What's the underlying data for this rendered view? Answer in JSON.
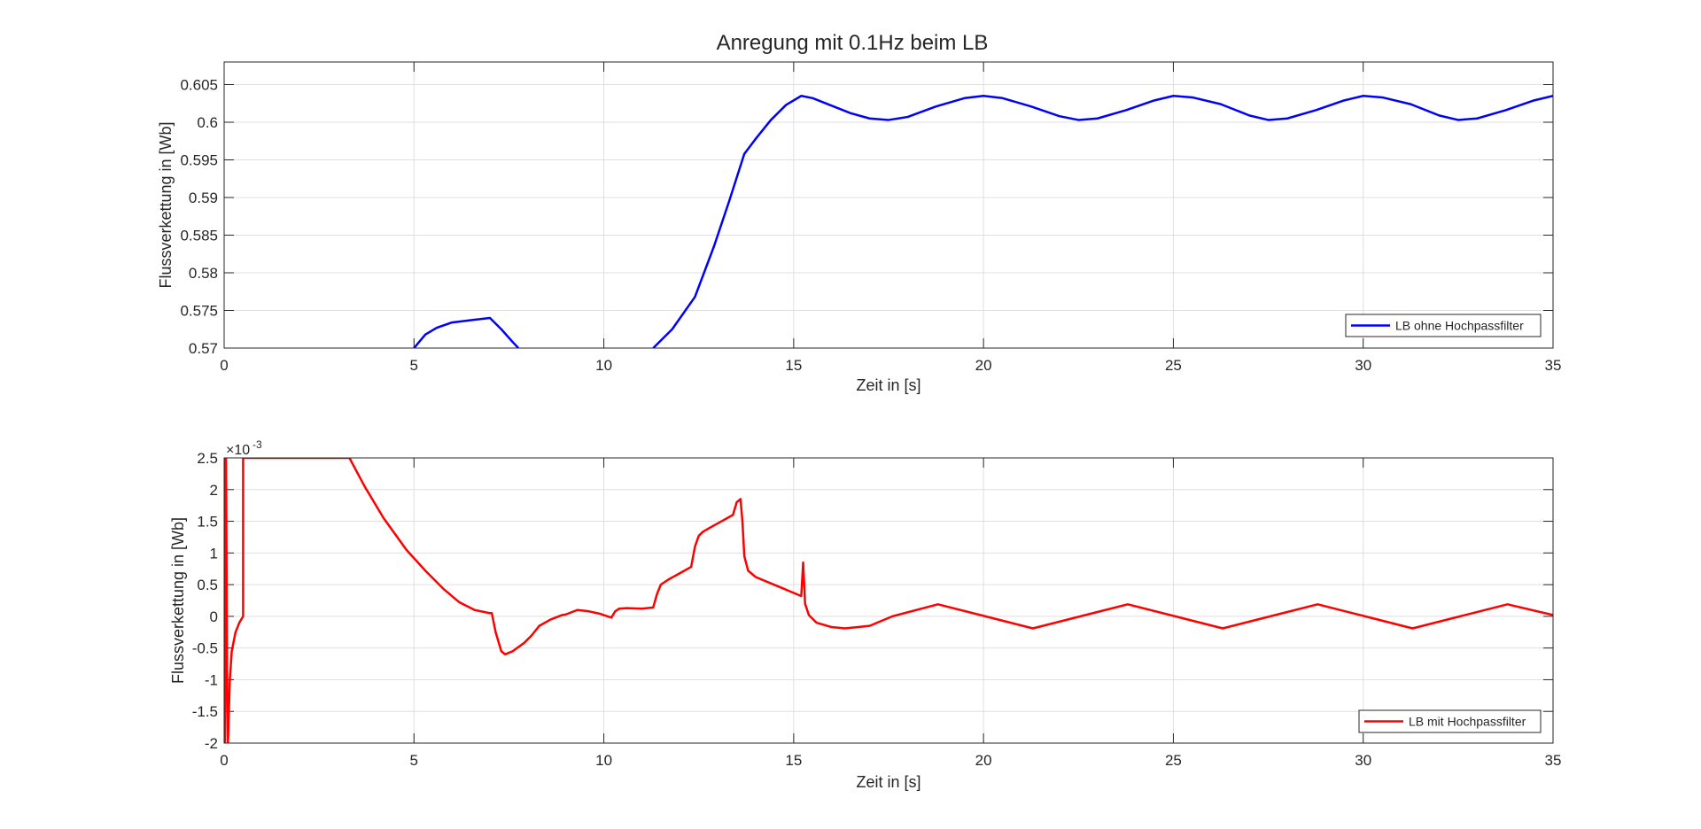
{
  "figure": {
    "title": "Anregung mit 0.1Hz beim LB"
  },
  "chart_data": [
    {
      "type": "line",
      "title": "Anregung mit 0.1Hz beim LB",
      "xlabel": "Zeit in [s]",
      "ylabel": "Flussverkettung in [Wb]",
      "xlim": [
        0,
        35
      ],
      "ylim": [
        0.57,
        0.608
      ],
      "xticks": [
        0,
        5,
        10,
        15,
        20,
        25,
        30,
        35
      ],
      "xtick_labels": [
        "0",
        "5",
        "10",
        "15",
        "20",
        "25",
        "30",
        "35"
      ],
      "yticks": [
        0.57,
        0.575,
        0.58,
        0.585,
        0.59,
        0.595,
        0.6,
        0.605
      ],
      "ytick_labels": [
        "0.57",
        "0.575",
        "0.58",
        "0.585",
        "0.59",
        "0.595",
        "0.6",
        "0.605"
      ],
      "grid": true,
      "legend": "bottom-right",
      "series": [
        {
          "name": "LB ohne Hochpassfilter",
          "color": "#0000ff",
          "x": [
            5.0,
            5.3,
            5.6,
            6.0,
            6.5,
            7.0,
            7.3,
            7.6,
            7.75,
            11.3,
            11.8,
            12.4,
            12.9,
            13.3,
            13.7,
            14.0,
            14.4,
            14.8,
            15.2,
            15.5,
            16.0,
            16.5,
            17.0,
            17.5,
            18.0,
            18.75,
            19.5,
            20.0,
            20.5,
            21.25,
            22.0,
            22.5,
            23.0,
            23.75,
            24.5,
            25.0,
            25.5,
            26.25,
            27.0,
            27.5,
            28.0,
            28.75,
            29.5,
            30.0,
            30.5,
            31.25,
            32.0,
            32.5,
            33.0,
            33.75,
            34.5,
            35.0
          ],
          "y": [
            0.57,
            0.5718,
            0.5727,
            0.5734,
            0.5737,
            0.574,
            0.5725,
            0.5708,
            0.57,
            0.57,
            0.5725,
            0.5768,
            0.5835,
            0.5895,
            0.5958,
            0.5978,
            0.6003,
            0.6023,
            0.6035,
            0.6032,
            0.6022,
            0.6012,
            0.6005,
            0.6003,
            0.6007,
            0.6021,
            0.6032,
            0.6035,
            0.6032,
            0.6021,
            0.6008,
            0.6003,
            0.6005,
            0.6016,
            0.6029,
            0.6035,
            0.6033,
            0.6024,
            0.6009,
            0.6003,
            0.6005,
            0.6016,
            0.6029,
            0.6035,
            0.6033,
            0.6024,
            0.6009,
            0.6003,
            0.6005,
            0.6016,
            0.6029,
            0.6035
          ]
        }
      ]
    },
    {
      "type": "line",
      "xlabel": "Zeit in [s]",
      "ylabel": "Flussverkettung in [Wb]",
      "y_exponent_label": "×10",
      "y_exponent_value": "-3",
      "xlim": [
        0,
        35
      ],
      "ylim": [
        -2,
        2.5
      ],
      "xticks": [
        0,
        5,
        10,
        15,
        20,
        25,
        30,
        35
      ],
      "xtick_labels": [
        "0",
        "5",
        "10",
        "15",
        "20",
        "25",
        "30",
        "35"
      ],
      "yticks": [
        -2,
        -1.5,
        -1,
        -0.5,
        0,
        0.5,
        1,
        1.5,
        2,
        2.5
      ],
      "ytick_labels": [
        "-2",
        "-1.5",
        "-1",
        "-0.5",
        "0",
        "0.5",
        "1",
        "1.5",
        "2",
        "2.5"
      ],
      "grid": true,
      "legend": "bottom-right",
      "series": [
        {
          "name": "LB mit Hochpassfilter",
          "color": "#ff0000",
          "x": [
            0.0,
            0.02,
            0.05,
            0.08,
            0.1,
            0.12,
            0.15,
            0.2,
            0.3,
            0.4,
            0.5,
            0.5,
            0.5,
            3.3,
            3.7,
            4.2,
            4.8,
            5.3,
            5.8,
            6.2,
            6.6,
            7.0,
            7.05,
            7.15,
            7.3,
            7.4,
            7.6,
            7.9,
            8.1,
            8.3,
            8.6,
            8.9,
            9.0,
            9.3,
            9.6,
            9.9,
            10.1,
            10.2,
            10.3,
            10.4,
            10.6,
            11.0,
            11.3,
            11.4,
            11.5,
            11.7,
            12.0,
            12.3,
            12.4,
            12.5,
            12.6,
            12.8,
            13.1,
            13.4,
            13.5,
            13.6,
            13.65,
            13.7,
            13.8,
            14.0,
            14.4,
            14.8,
            15.2,
            15.25,
            15.3,
            15.4,
            15.6,
            16.0,
            16.35,
            17.0,
            17.6,
            18.8,
            20.05,
            21.3,
            22.55,
            23.8,
            25.05,
            26.3,
            27.55,
            28.8,
            30.05,
            31.3,
            32.55,
            33.8,
            35.0
          ],
          "y": [
            2.5,
            -2.0,
            2.5,
            -1.2,
            -2.0,
            -1.6,
            -1.0,
            -0.55,
            -0.25,
            -0.1,
            0.0,
            2.5,
            2.5,
            2.5,
            2.05,
            1.55,
            1.05,
            0.72,
            0.42,
            0.22,
            0.1,
            0.05,
            0.05,
            -0.25,
            -0.55,
            -0.6,
            -0.55,
            -0.42,
            -0.3,
            -0.15,
            -0.05,
            0.02,
            0.03,
            0.1,
            0.08,
            0.04,
            0.0,
            -0.02,
            0.08,
            0.12,
            0.13,
            0.12,
            0.14,
            0.35,
            0.5,
            0.58,
            0.68,
            0.78,
            1.1,
            1.27,
            1.33,
            1.4,
            1.5,
            1.6,
            1.8,
            1.85,
            1.5,
            0.95,
            0.72,
            0.62,
            0.52,
            0.42,
            0.32,
            0.85,
            0.2,
            0.02,
            -0.1,
            -0.17,
            -0.19,
            -0.15,
            0.0,
            0.19,
            0.0,
            -0.19,
            0.0,
            0.19,
            0.0,
            -0.19,
            0.0,
            0.19,
            0.0,
            -0.19,
            0.0,
            0.19,
            0.02
          ]
        }
      ]
    }
  ]
}
